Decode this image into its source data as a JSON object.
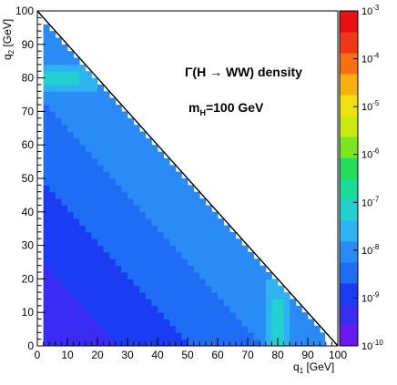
{
  "chart_data": {
    "type": "heatmap",
    "title_lines": [
      "Γ(H → WW) density",
      "m_H=100 GeV"
    ],
    "title_main": "Γ(H → WW) density",
    "title_mass_prefix": "m",
    "title_mass_sub": "H",
    "title_mass_suffix": "=100 GeV",
    "xlabel_main": "q",
    "xlabel_sub": "1",
    "xlabel_unit": " [GeV]",
    "ylabel_main": "q",
    "ylabel_sub": "2",
    "ylabel_unit": " [GeV]",
    "xlim": [
      0,
      100
    ],
    "ylim": [
      0,
      100
    ],
    "x_ticks": [
      "0",
      "10",
      "20",
      "30",
      "40",
      "50",
      "60",
      "70",
      "80",
      "90",
      "100"
    ],
    "y_ticks": [
      "0",
      "10",
      "20",
      "30",
      "40",
      "50",
      "60",
      "70",
      "80",
      "90",
      "100"
    ],
    "kinematic_boundary": {
      "x": [
        0,
        100
      ],
      "y": [
        100,
        0
      ]
    },
    "z_scale": "log",
    "z_range": [
      1e-10,
      0.001
    ],
    "colorbar_ticks": [
      {
        "base": "10",
        "exp": "-10"
      },
      {
        "base": "10",
        "exp": "-9"
      },
      {
        "base": "10",
        "exp": "-8"
      },
      {
        "base": "10",
        "exp": "-7"
      },
      {
        "base": "10",
        "exp": "-6"
      },
      {
        "base": "10",
        "exp": "-5"
      },
      {
        "base": "10",
        "exp": "-4"
      },
      {
        "base": "10",
        "exp": "-3"
      }
    ],
    "colorbar_palette": [
      "#6A1AF0",
      "#3A2CF2",
      "#1A3CF2",
      "#1F6CF5",
      "#2A8AF6",
      "#2EB2F2",
      "#22D0D0",
      "#1ADC9A",
      "#24DC5A",
      "#7AE620",
      "#C8EA10",
      "#F0E010",
      "#F8B010",
      "#F87010",
      "#F03818",
      "#E81010"
    ],
    "density_description": "density nonzero for q1 + q2 < 100 GeV; enhanced near q1 ≈ 80 GeV and q2 ≈ 80 GeV"
  }
}
